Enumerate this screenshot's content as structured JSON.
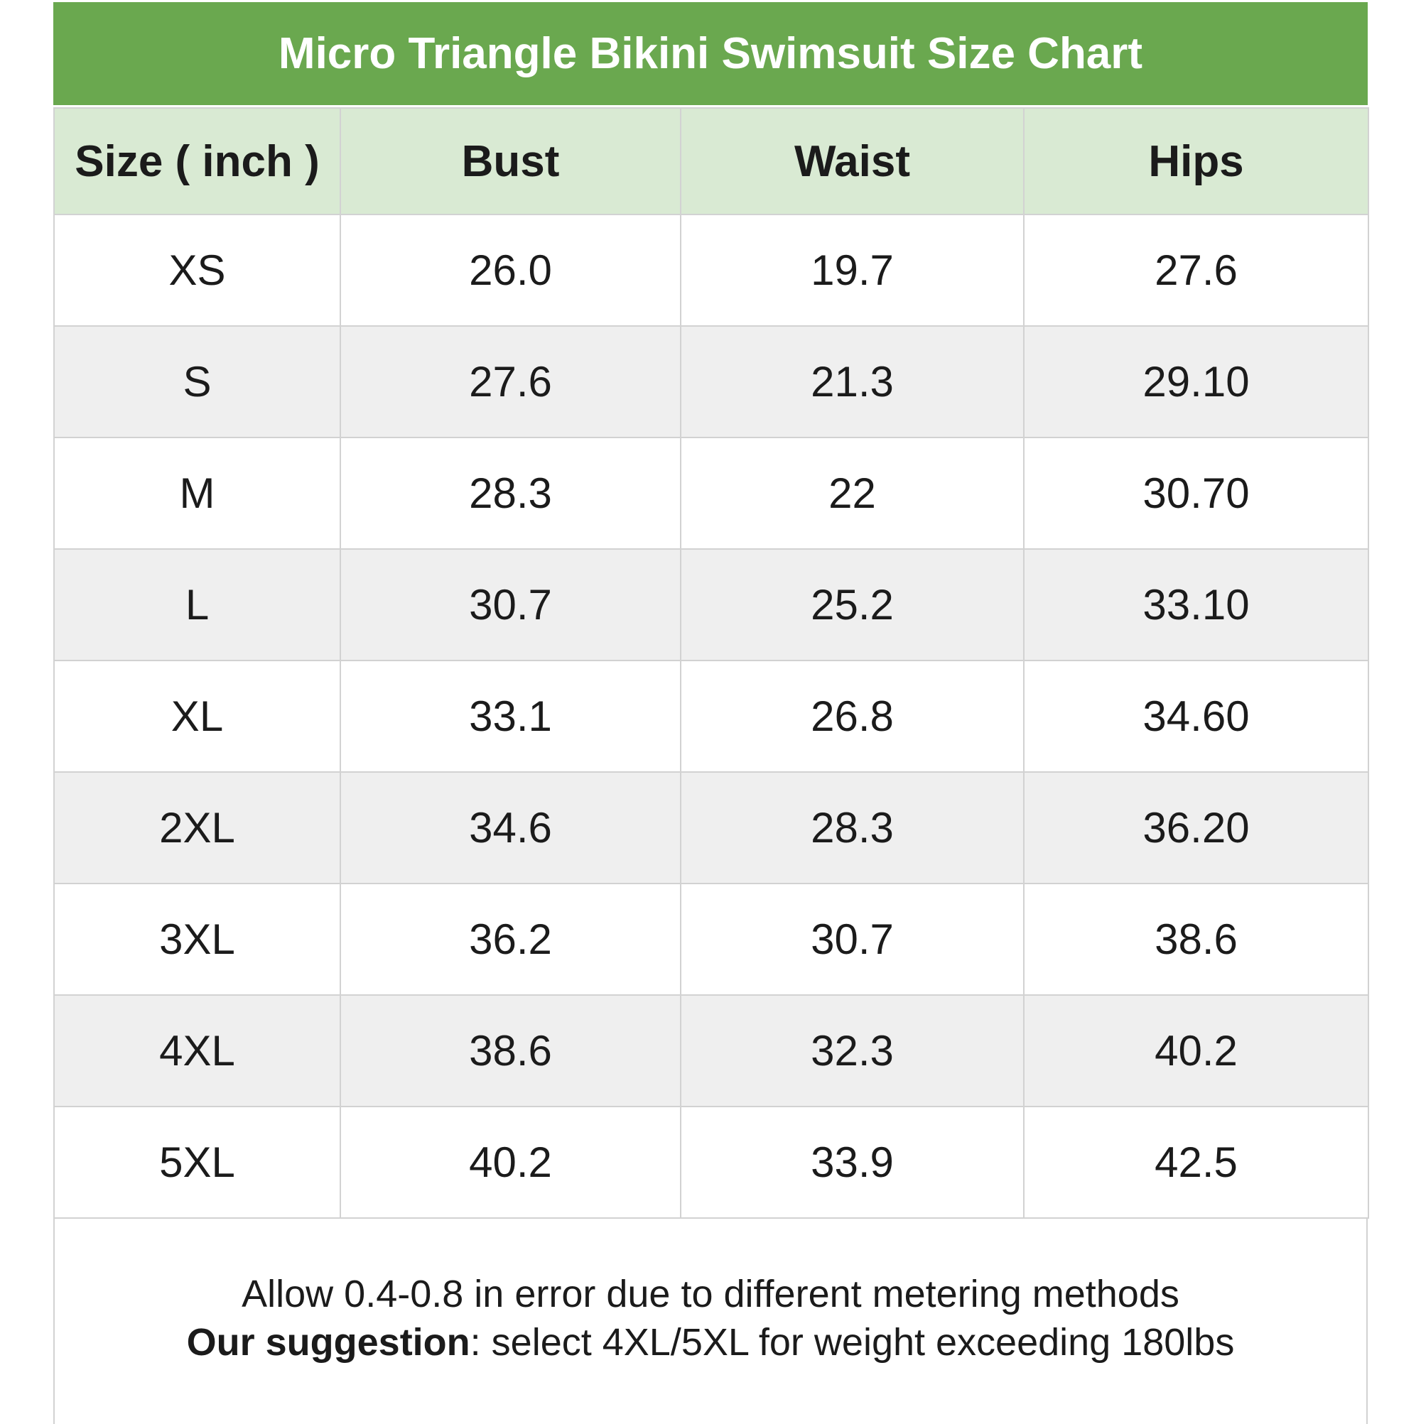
{
  "title": "Micro Triangle Bikini Swimsuit Size Chart",
  "chart_data": {
    "type": "table",
    "title": "Micro Triangle Bikini Swimsuit Size Chart",
    "unit": "inch",
    "columns": [
      "Size ( inch )",
      "Bust",
      "Waist",
      "Hips"
    ],
    "rows": [
      {
        "size": "XS",
        "bust": "26.0",
        "waist": "19.7",
        "hips": "27.6"
      },
      {
        "size": "S",
        "bust": "27.6",
        "waist": "21.3",
        "hips": "29.10"
      },
      {
        "size": "M",
        "bust": "28.3",
        "waist": "22",
        "hips": "30.70"
      },
      {
        "size": "L",
        "bust": "30.7",
        "waist": "25.2",
        "hips": "33.10"
      },
      {
        "size": "XL",
        "bust": "33.1",
        "waist": "26.8",
        "hips": "34.60"
      },
      {
        "size": "2XL",
        "bust": "34.6",
        "waist": "28.3",
        "hips": "36.20"
      },
      {
        "size": "3XL",
        "bust": "36.2",
        "waist": "30.7",
        "hips": "38.6"
      },
      {
        "size": "4XL",
        "bust": "38.6",
        "waist": "32.3",
        "hips": "40.2"
      },
      {
        "size": "5XL",
        "bust": "40.2",
        "waist": "33.9",
        "hips": "42.5"
      }
    ],
    "layout": {
      "row_striping": true,
      "stripe_rows": [
        "S",
        "L",
        "2XL",
        "4XL"
      ],
      "header_background": "light-green",
      "title_background": "green"
    }
  },
  "footer": {
    "line1": "Allow 0.4-0.8 in error due to different metering methods",
    "line2_bold": "Our suggestion",
    "line2_rest": ": select 4XL/5XL for weight exceeding 180lbs"
  },
  "colors": {
    "banner_green": "#6aa84f",
    "header_green": "#d9ead3",
    "row_white": "#ffffff",
    "row_gray": "#efefef",
    "border_gray": "#d2d2d2",
    "text_dark": "#1b1b1b",
    "title_white": "#ffffff"
  }
}
